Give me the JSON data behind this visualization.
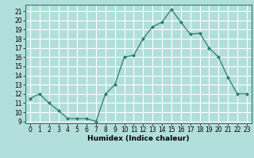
{
  "x": [
    0,
    1,
    2,
    3,
    4,
    5,
    6,
    7,
    8,
    9,
    10,
    11,
    12,
    13,
    14,
    15,
    16,
    17,
    18,
    19,
    20,
    21,
    22,
    23
  ],
  "y": [
    11.5,
    12.0,
    11.0,
    10.2,
    9.3,
    9.3,
    9.3,
    9.0,
    12.0,
    13.0,
    16.0,
    16.2,
    18.0,
    19.3,
    19.8,
    21.2,
    19.8,
    18.5,
    18.6,
    17.0,
    16.0,
    13.8,
    12.0,
    12.0
  ],
  "line_color": "#2e7d6e",
  "marker": "D",
  "marker_size": 2.0,
  "xlabel": "Humidex (Indice chaleur)",
  "ylabel_ticks": [
    9,
    10,
    11,
    12,
    13,
    14,
    15,
    16,
    17,
    18,
    19,
    20,
    21
  ],
  "ylim": [
    8.8,
    21.7
  ],
  "xlim": [
    -0.5,
    23.5
  ],
  "bg_color": "#b2dfdb",
  "grid_color": "#ffffff",
  "tick_fontsize": 5.5,
  "xlabel_fontsize": 6.5
}
